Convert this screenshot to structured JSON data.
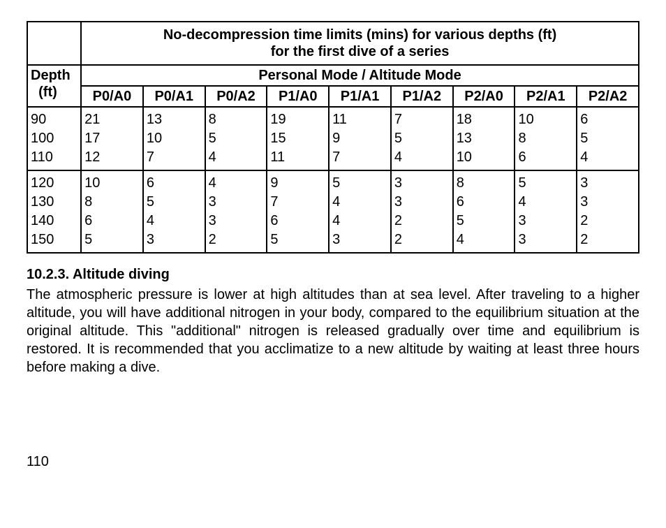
{
  "table": {
    "title_line1": "No-decompression time limits (mins) for various depths (ft)",
    "title_line2": "for the first dive of a series",
    "depth_header_line1": "Depth",
    "depth_header_line2": "(ft)",
    "mode_header": "Personal Mode / Altitude Mode",
    "columns": [
      "P0/A0",
      "P0/A1",
      "P0/A2",
      "P1/A0",
      "P1/A1",
      "P1/A2",
      "P2/A0",
      "P2/A1",
      "P2/A2"
    ],
    "group1": {
      "depths": [
        "90",
        "100",
        "110"
      ],
      "values": [
        [
          "21",
          "17",
          "12"
        ],
        [
          "13",
          "10",
          "7"
        ],
        [
          "8",
          "5",
          "4"
        ],
        [
          "19",
          "15",
          "11"
        ],
        [
          "11",
          "9",
          "7"
        ],
        [
          "7",
          "5",
          "4"
        ],
        [
          "18",
          "13",
          "10"
        ],
        [
          "10",
          "8",
          "6"
        ],
        [
          "6",
          "5",
          "4"
        ]
      ]
    },
    "group2": {
      "depths": [
        "120",
        "130",
        "140",
        "150"
      ],
      "values": [
        [
          "10",
          "8",
          "6",
          "5"
        ],
        [
          "6",
          "5",
          "4",
          "3"
        ],
        [
          "4",
          "3",
          "3",
          "2"
        ],
        [
          "9",
          "7",
          "6",
          "5"
        ],
        [
          "5",
          "4",
          "4",
          "3"
        ],
        [
          "3",
          "3",
          "2",
          "2"
        ],
        [
          "8",
          "6",
          "5",
          "4"
        ],
        [
          "5",
          "4",
          "3",
          "3"
        ],
        [
          "3",
          "3",
          "2",
          "2"
        ]
      ]
    }
  },
  "section": {
    "heading": "10.2.3. Altitude diving",
    "paragraph": "The atmospheric pressure is lower at high altitudes than at sea level. After traveling to a higher altitude, you will have additional nitrogen in your body, compared to the equilibrium situation at the original altitude. This \"additional\" nitrogen is released gradually over time and equilibrium is restored. It is recommended that you acclimatize to a new altitude by waiting at least three hours before making a dive."
  },
  "page_number": "110"
}
